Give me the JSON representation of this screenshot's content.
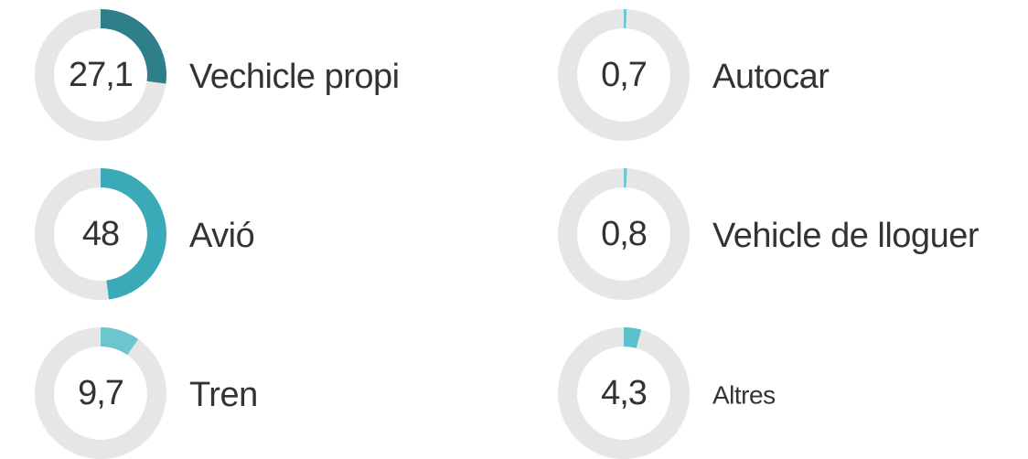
{
  "chart_data": {
    "type": "donut",
    "categories": [
      "Vechicle propi",
      "Avió",
      "Tren",
      "Autocar",
      "Vehicle de lloguer",
      "Altres"
    ],
    "values": [
      27.1,
      48,
      9.7,
      0.7,
      0.8,
      4.3
    ],
    "value_labels": [
      "27,1",
      "48",
      "9,7",
      "0,7",
      "0,8",
      "4,3"
    ],
    "colors": [
      "#2e7f8a",
      "#3aa9b8",
      "#6cc5cf",
      "#6cc5cf",
      "#6cc5cf",
      "#5cbfcc"
    ],
    "ylim": [
      0,
      100
    ]
  }
}
